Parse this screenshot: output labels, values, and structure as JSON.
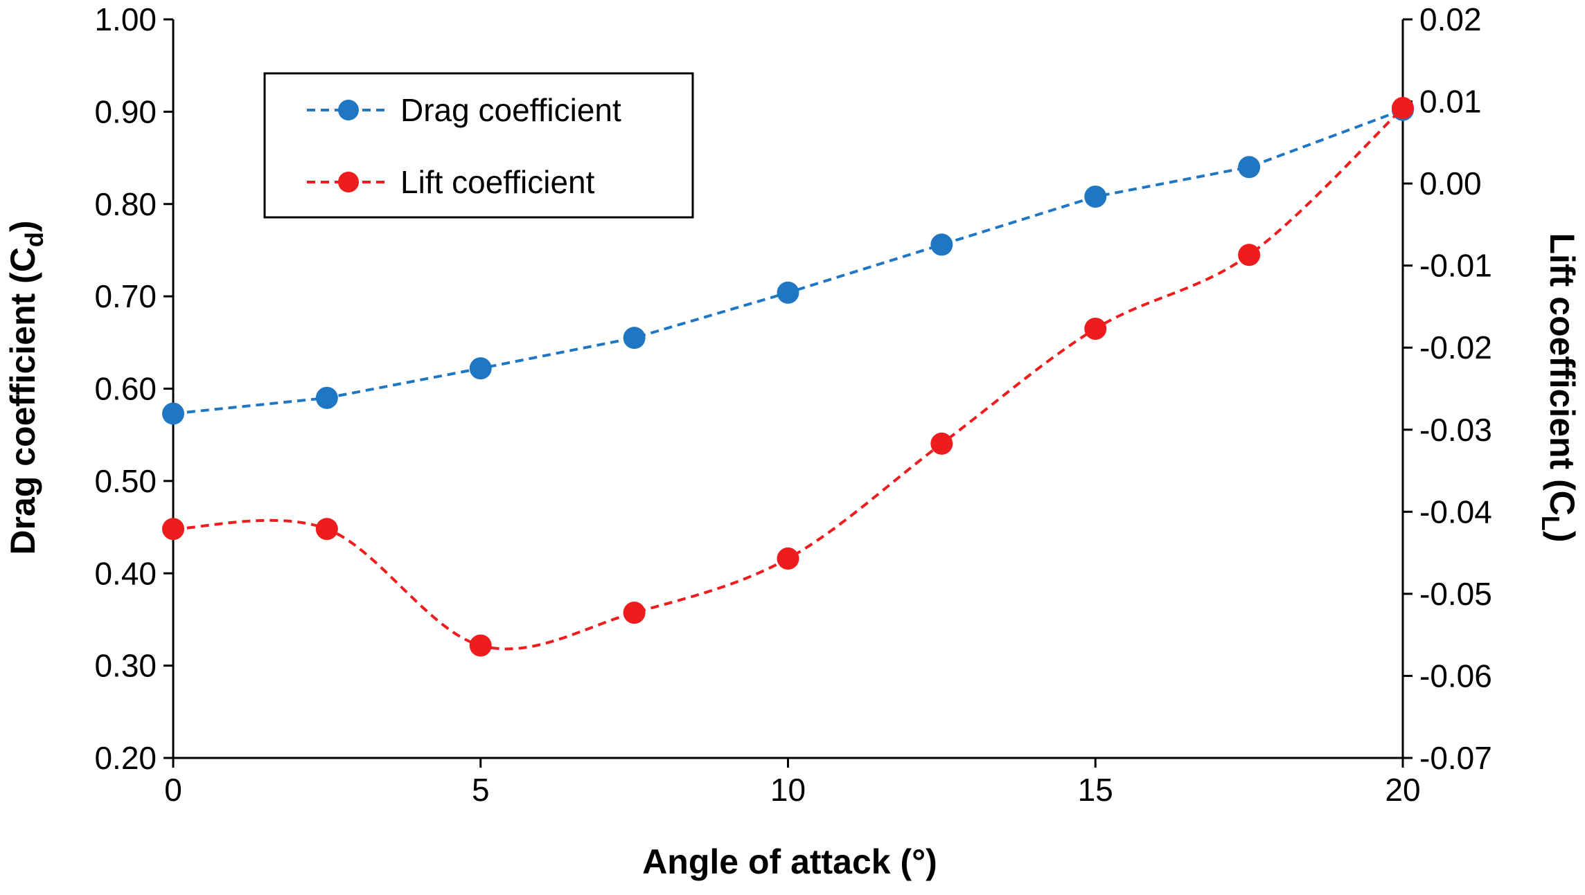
{
  "chart_data": {
    "type": "line",
    "title": "",
    "xlabel": "Angle of attack (°)",
    "ylabel_left": {
      "main": "Drag coefficient (C",
      "sub": "d",
      "close": ")"
    },
    "ylabel_right": {
      "main": "Lift coefficient (C",
      "sub": "L",
      "close": ")"
    },
    "x": [
      0,
      2.5,
      5,
      7.5,
      10,
      12.5,
      15,
      17.5,
      20
    ],
    "xlim": [
      0,
      20
    ],
    "x_ticks": [
      0,
      5,
      10,
      15,
      20
    ],
    "x_tick_labels": [
      "0",
      "5",
      "10",
      "15",
      "20"
    ],
    "ylim_left": [
      0.2,
      1.0
    ],
    "y_ticks_left": [
      0.2,
      0.3,
      0.4,
      0.5,
      0.6,
      0.7,
      0.8,
      0.9,
      1.0
    ],
    "y_tick_labels_left": [
      "0.20",
      "0.30",
      "0.40",
      "0.50",
      "0.60",
      "0.70",
      "0.80",
      "0.90",
      "1.00"
    ],
    "ylim_right": [
      -0.07,
      0.02
    ],
    "y_ticks_right": [
      -0.07,
      -0.06,
      -0.05,
      -0.04,
      -0.03,
      -0.02,
      -0.01,
      0.0,
      0.01,
      0.02
    ],
    "y_tick_labels_right": [
      "-0.07",
      "-0.06",
      "-0.05",
      "-0.04",
      "-0.03",
      "-0.02",
      "-0.01",
      "0.00",
      "0.01",
      "0.02"
    ],
    "grid": false,
    "legend_position": "top-left",
    "series": [
      {
        "name": "Drag coefficient",
        "axis": "left",
        "color": "#1f77c4",
        "line_style": "dashed",
        "smooth": false,
        "values": [
          0.573,
          0.59,
          0.622,
          0.655,
          0.704,
          0.756,
          0.808,
          0.84,
          0.902
        ]
      },
      {
        "name": "Lift coefficient",
        "axis": "right",
        "color": "#ee1c1c",
        "line_style": "dashed",
        "smooth": true,
        "values": [
          -0.0421,
          -0.0421,
          -0.0563,
          -0.0523,
          -0.0457,
          -0.0317,
          -0.0177,
          -0.0087,
          0.0092
        ]
      }
    ]
  }
}
